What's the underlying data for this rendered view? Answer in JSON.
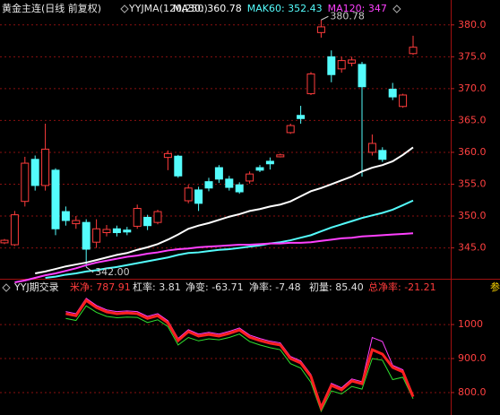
{
  "chart_data": [
    {
      "type": "candlestick",
      "title": "黄金主连(日线 前复权)",
      "indicator": "YYJMA(120,250)",
      "up_color": "#ff3c3c",
      "down_color": "#54fcfc",
      "open": [
        345.8,
        345.5,
        352.3,
        358.9,
        354.8,
        357.2,
        350.7,
        348.8,
        349,
        345.9,
        347.4,
        348,
        347.8,
        348.4,
        349.8,
        349,
        359.2,
        359.4,
        352.4,
        354.1,
        355.4,
        357.6,
        355.8,
        354.9,
        355.5,
        357.6,
        358.6,
        359.3,
        363.1,
        365.8,
        369.2,
        378.8,
        375,
        373.1,
        374,
        373.8,
        360,
        360.3,
        369.9,
        367.2,
        375.5
      ],
      "high": [
        346.4,
        350.8,
        359.3,
        359.5,
        364.5,
        357.5,
        351.5,
        350,
        349.5,
        349.5,
        348.6,
        348.5,
        348.3,
        351.8,
        350.2,
        351,
        360.3,
        359.6,
        354.9,
        354.6,
        356,
        358,
        356.3,
        355.3,
        357,
        358,
        359.2,
        359.8,
        364.5,
        367.3,
        372.6,
        380.78,
        376,
        375,
        375,
        374.2,
        362.8,
        360.8,
        370.9,
        369.2,
        378.3
      ],
      "low": [
        345.6,
        345.3,
        351.5,
        354,
        354,
        347,
        348.5,
        348,
        342.0,
        345,
        346.8,
        346.8,
        347,
        348,
        347.8,
        348.7,
        357.2,
        356,
        352,
        350.8,
        353.9,
        355.2,
        354,
        353.5,
        355.1,
        356.9,
        357.3,
        359.2,
        362.9,
        364.5,
        369,
        378,
        371,
        372.5,
        373.5,
        356.2,
        359.5,
        358.5,
        368.2,
        367,
        375.3
      ],
      "close": [
        346.2,
        350.2,
        358.3,
        354.8,
        360.5,
        348,
        349.3,
        349.3,
        344.8,
        348,
        347.9,
        347.4,
        347.5,
        351.2,
        348.5,
        350.7,
        359.8,
        356.3,
        354.4,
        352,
        354.4,
        355.8,
        354.5,
        353.8,
        356.6,
        357.2,
        358.2,
        359.6,
        364.2,
        365.3,
        372.3,
        379.7,
        372.2,
        374.4,
        374.5,
        370.3,
        361.4,
        358.9,
        368.7,
        369,
        376.5
      ],
      "series": [
        {
          "name": "MA30: 360.78",
          "color": "#ffffff",
          "values": [
            null,
            null,
            null,
            341.0,
            341.3,
            341.7,
            342.1,
            342.4,
            342.7,
            343.1,
            343.5,
            343.9,
            344.2,
            344.7,
            345.1,
            345.6,
            346.3,
            347.1,
            348.0,
            348.5,
            348.9,
            349.4,
            349.9,
            350.3,
            350.8,
            351.1,
            351.5,
            351.8,
            352.3,
            353.1,
            353.9,
            354.4,
            355.0,
            355.6,
            356.2,
            357.0,
            357.6,
            358.0,
            358.6,
            359.6,
            360.78
          ]
        },
        {
          "name": "MAK60: 352.43",
          "color": "#54fcfc",
          "values": [
            null,
            null,
            null,
            null,
            340.3,
            340.5,
            340.8,
            341.0,
            341.3,
            341.5,
            341.8,
            342.0,
            342.3,
            342.6,
            342.9,
            343.2,
            343.5,
            343.9,
            344.2,
            344.3,
            344.5,
            344.7,
            344.8,
            345.0,
            345.2,
            345.4,
            345.7,
            345.9,
            346.2,
            346.6,
            347.0,
            347.6,
            348.2,
            348.7,
            349.2,
            349.7,
            350.1,
            350.5,
            351.0,
            351.7,
            352.43
          ]
        },
        {
          "name": "MA120: 347",
          "color": "#ff40ff",
          "values": [
            null,
            339.6,
            339.9,
            340.3,
            340.7,
            341.0,
            341.4,
            341.8,
            342.3,
            342.7,
            343.0,
            343.3,
            343.6,
            343.8,
            344.1,
            344.3,
            344.6,
            344.8,
            344.9,
            345.1,
            345.2,
            345.3,
            345.4,
            345.5,
            345.5,
            345.6,
            345.7,
            345.7,
            345.8,
            345.8,
            345.9,
            346.1,
            346.3,
            346.5,
            346.6,
            346.8,
            346.9,
            347.0,
            347.1,
            347.2,
            347.3
          ]
        }
      ],
      "annotations": [
        {
          "text": "380.78",
          "index": 31,
          "value": 380.78
        },
        {
          "text": "342.00",
          "index": 8,
          "value": 342.0
        }
      ],
      "ylim": [
        340.3,
        381.8
      ],
      "yticks": [
        {
          "value": 345,
          "label": "345.0"
        },
        {
          "value": 350,
          "label": "350.0"
        },
        {
          "value": 355,
          "label": "355.0"
        },
        {
          "value": 360,
          "label": "360.0"
        },
        {
          "value": 365,
          "label": "365.0"
        },
        {
          "value": 370,
          "label": "370.0"
        },
        {
          "value": 375,
          "label": "375.0"
        },
        {
          "value": 380,
          "label": "380.0"
        }
      ],
      "grid": true
    },
    {
      "type": "line",
      "title": "YYJ期交录",
      "stats": [
        {
          "text": "米净: 787.91",
          "color": "#ff3c3c"
        },
        {
          "text": "杠率: 3.81",
          "color": "#e0e0e0"
        },
        {
          "text": "净变: -63.71",
          "color": "#e0e0e0"
        },
        {
          "text": "净率: -7.48",
          "color": "#e0e0e0"
        },
        {
          "text": "初量: 85.40",
          "color": "#e0e0e0"
        },
        {
          "text": "总净率: -21.21",
          "color": "#ff3c3c"
        },
        {
          "text": "参",
          "color": "#ffd700"
        }
      ],
      "series": [
        {
          "color": "#ff40ff",
          "width": 1,
          "values": [
            null,
            null,
            null,
            null,
            null,
            null,
            1038,
            1032,
            1077,
            1056,
            1043,
            1038,
            1040,
            1038,
            1024,
            1032,
            1011,
            959,
            985,
            972,
            977,
            972,
            980,
            990,
            969,
            959,
            951,
            946,
            906,
            893,
            853,
            761,
            827,
            814,
            840,
            832,
            962,
            950,
            880,
            867,
            792
          ]
        },
        {
          "color": "#30e030",
          "width": 1,
          "values": [
            null,
            null,
            null,
            null,
            null,
            null,
            1018,
            1012,
            1055,
            1036,
            1024,
            1020,
            1022,
            1021,
            1006,
            1014,
            994,
            940,
            962,
            952,
            958,
            955,
            962,
            972,
            950,
            940,
            932,
            926,
            885,
            872,
            830,
            745,
            805,
            796,
            818,
            810,
            900,
            895,
            838,
            845,
            782
          ]
        },
        {
          "color": "#ff2020",
          "width": 3,
          "values": [
            null,
            null,
            null,
            null,
            null,
            null,
            1032,
            1026,
            1071,
            1050,
            1037,
            1032,
            1034,
            1032,
            1018,
            1026,
            1005,
            953,
            979,
            966,
            971,
            966,
            974,
            984,
            963,
            953,
            945,
            940,
            900,
            887,
            847,
            755,
            821,
            808,
            834,
            826,
            926,
            913,
            874,
            861,
            787.91
          ]
        }
      ],
      "ylim": [
        734,
        1132
      ],
      "yticks": [
        {
          "value": 800,
          "label": "800.0"
        },
        {
          "value": 900,
          "label": "900.0"
        },
        {
          "value": 1000,
          "label": "1000"
        }
      ],
      "grid": true
    }
  ]
}
